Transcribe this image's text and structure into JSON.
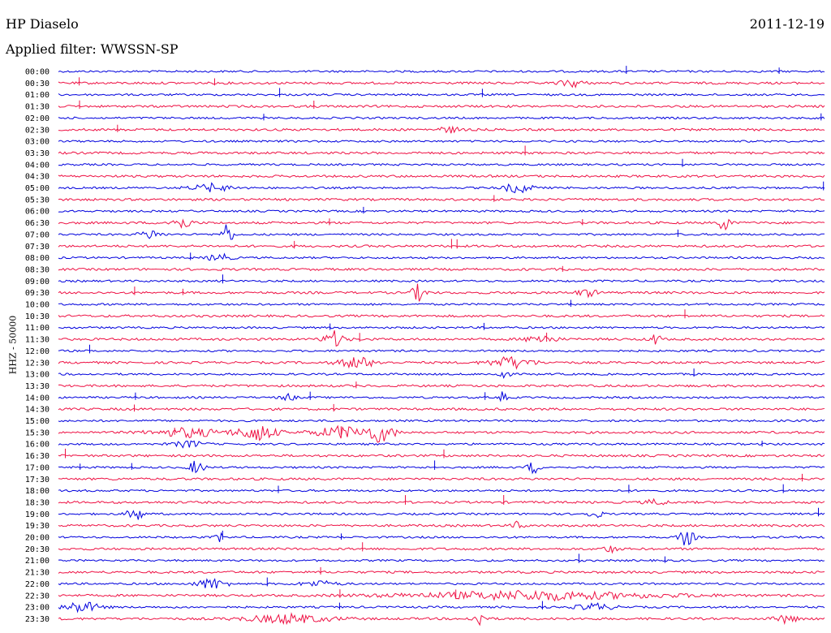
{
  "header": {
    "station": "HP Diaselo",
    "date": "2011-12-19",
    "filter": "Applied filter: WWSSN-SP"
  },
  "chart_data": {
    "type": "line",
    "title": "HP Diaselo",
    "subtitle": "Applied filter: WWSSN-SP",
    "ylabel": "HHZ - 50000",
    "xlabel": "",
    "grid": false,
    "row_interval_minutes": 30,
    "series_colors": [
      "#0000dd",
      "#ee1144"
    ],
    "categories": [
      "00:00",
      "00:30",
      "01:00",
      "01:30",
      "02:00",
      "02:30",
      "03:00",
      "03:30",
      "04:00",
      "04:30",
      "05:00",
      "05:30",
      "06:00",
      "06:30",
      "07:00",
      "07:30",
      "08:00",
      "08:30",
      "09:00",
      "09:30",
      "10:00",
      "10:30",
      "11:00",
      "11:30",
      "12:00",
      "12:30",
      "13:00",
      "13:30",
      "14:00",
      "14:30",
      "15:00",
      "15:30",
      "16:00",
      "16:30",
      "17:00",
      "17:30",
      "18:00",
      "18:30",
      "19:00",
      "19:30",
      "20:00",
      "20:30",
      "21:00",
      "21:30",
      "22:00",
      "22:30",
      "23:00",
      "23:30"
    ],
    "events": [
      {
        "row": "00:30",
        "pos": 0.67,
        "amp": 6,
        "dur": 0.03
      },
      {
        "row": "02:30",
        "pos": 0.51,
        "amp": 4,
        "dur": 0.03
      },
      {
        "row": "05:00",
        "pos": 0.2,
        "amp": 5,
        "dur": 0.06
      },
      {
        "row": "05:00",
        "pos": 0.6,
        "amp": 7,
        "dur": 0.04
      },
      {
        "row": "06:30",
        "pos": 0.16,
        "amp": 8,
        "dur": 0.03
      },
      {
        "row": "06:30",
        "pos": 0.87,
        "amp": 14,
        "dur": 0.015
      },
      {
        "row": "07:00",
        "pos": 0.12,
        "amp": 6,
        "dur": 0.03
      },
      {
        "row": "07:00",
        "pos": 0.22,
        "amp": 18,
        "dur": 0.015
      },
      {
        "row": "08:00",
        "pos": 0.21,
        "amp": 6,
        "dur": 0.03
      },
      {
        "row": "09:30",
        "pos": 0.47,
        "amp": 11,
        "dur": 0.02
      },
      {
        "row": "09:30",
        "pos": 0.69,
        "amp": 5,
        "dur": 0.03
      },
      {
        "row": "11:30",
        "pos": 0.36,
        "amp": 10,
        "dur": 0.03
      },
      {
        "row": "11:30",
        "pos": 0.63,
        "amp": 6,
        "dur": 0.04
      },
      {
        "row": "11:30",
        "pos": 0.78,
        "amp": 8,
        "dur": 0.015
      },
      {
        "row": "12:30",
        "pos": 0.39,
        "amp": 8,
        "dur": 0.05
      },
      {
        "row": "12:30",
        "pos": 0.59,
        "amp": 8,
        "dur": 0.06
      },
      {
        "row": "13:00",
        "pos": 0.58,
        "amp": 9,
        "dur": 0.015
      },
      {
        "row": "14:00",
        "pos": 0.3,
        "amp": 5,
        "dur": 0.02
      },
      {
        "row": "14:00",
        "pos": 0.58,
        "amp": 8,
        "dur": 0.01
      },
      {
        "row": "15:30",
        "pos": 0.17,
        "amp": 6,
        "dur": 0.1
      },
      {
        "row": "15:30",
        "pos": 0.26,
        "amp": 12,
        "dur": 0.05
      },
      {
        "row": "15:30",
        "pos": 0.37,
        "amp": 8,
        "dur": 0.08
      },
      {
        "row": "15:30",
        "pos": 0.42,
        "amp": 12,
        "dur": 0.04
      },
      {
        "row": "16:00",
        "pos": 0.17,
        "amp": 5,
        "dur": 0.04
      },
      {
        "row": "17:00",
        "pos": 0.18,
        "amp": 10,
        "dur": 0.02
      },
      {
        "row": "17:00",
        "pos": 0.62,
        "amp": 10,
        "dur": 0.015
      },
      {
        "row": "18:30",
        "pos": 0.78,
        "amp": 4,
        "dur": 0.03
      },
      {
        "row": "19:00",
        "pos": 0.1,
        "amp": 12,
        "dur": 0.02
      },
      {
        "row": "19:00",
        "pos": 0.7,
        "amp": 6,
        "dur": 0.02
      },
      {
        "row": "19:30",
        "pos": 0.6,
        "amp": 6,
        "dur": 0.015
      },
      {
        "row": "20:00",
        "pos": 0.21,
        "amp": 7,
        "dur": 0.01
      },
      {
        "row": "20:00",
        "pos": 0.82,
        "amp": 13,
        "dur": 0.02
      },
      {
        "row": "20:30",
        "pos": 0.72,
        "amp": 5,
        "dur": 0.02
      },
      {
        "row": "22:00",
        "pos": 0.2,
        "amp": 8,
        "dur": 0.04
      },
      {
        "row": "22:00",
        "pos": 0.34,
        "amp": 4,
        "dur": 0.05
      },
      {
        "row": "22:30",
        "pos": 0.62,
        "amp": 6,
        "dur": 0.35
      },
      {
        "row": "23:00",
        "pos": 0.03,
        "amp": 8,
        "dur": 0.05
      },
      {
        "row": "23:00",
        "pos": 0.7,
        "amp": 5,
        "dur": 0.05
      },
      {
        "row": "23:30",
        "pos": 0.3,
        "amp": 6,
        "dur": 0.12
      },
      {
        "row": "23:30",
        "pos": 0.55,
        "amp": 9,
        "dur": 0.02
      },
      {
        "row": "23:30",
        "pos": 0.95,
        "amp": 6,
        "dur": 0.03
      }
    ]
  }
}
